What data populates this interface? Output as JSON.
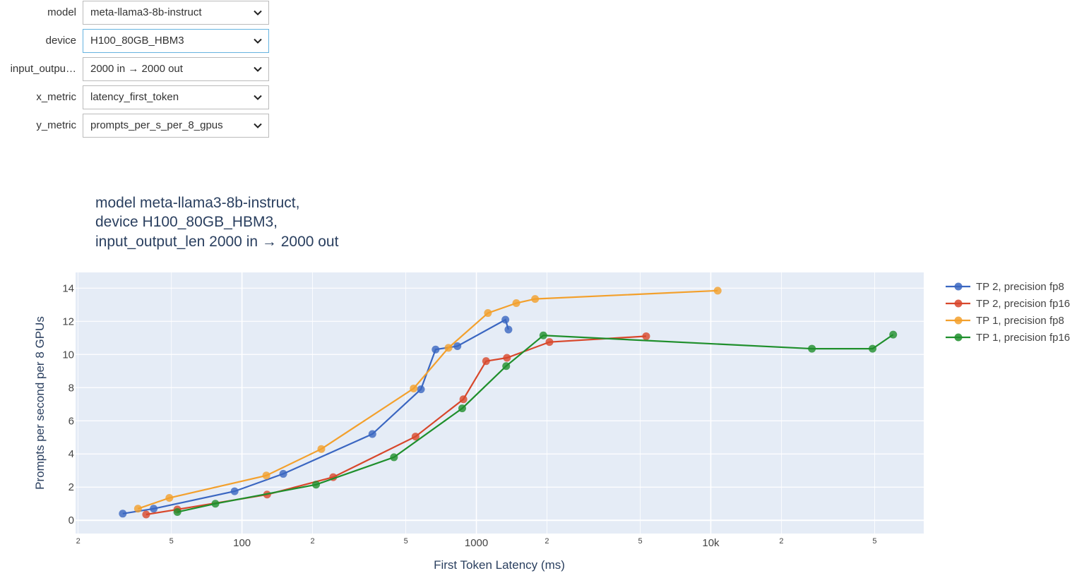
{
  "controls": [
    {
      "label": "model",
      "value": "meta-llama3-8b-instruct"
    },
    {
      "label": "device",
      "value": "H100_80GB_HBM3"
    },
    {
      "label": "input_output_len",
      "label_display": "input_outpu…",
      "value": "2000 in → 2000 out"
    },
    {
      "label": "x_metric",
      "value": "latency_first_token"
    },
    {
      "label": "y_metric",
      "value": "prompts_per_s_per_8_gpus"
    }
  ],
  "chart_data": {
    "type": "line",
    "title": [
      "model meta-llama3-8b-instruct,",
      "device H100_80GB_HBM3,",
      "input_output_len 2000 in → 2000 out"
    ],
    "xlabel": "First Token Latency (ms)",
    "ylabel": "Prompts per second per 8 GPUs",
    "x_scale": "log",
    "xlim": [
      19.5,
      81000
    ],
    "ylim": [
      -0.8,
      14.95
    ],
    "x_ticks": [
      {
        "v": 20,
        "label": "2",
        "minor": true
      },
      {
        "v": 50,
        "label": "5",
        "minor": true
      },
      {
        "v": 100,
        "label": "100",
        "minor": false
      },
      {
        "v": 200,
        "label": "2",
        "minor": true
      },
      {
        "v": 500,
        "label": "5",
        "minor": true
      },
      {
        "v": 1000,
        "label": "1000",
        "minor": false
      },
      {
        "v": 2000,
        "label": "2",
        "minor": true
      },
      {
        "v": 5000,
        "label": "5",
        "minor": true
      },
      {
        "v": 10000,
        "label": "10k",
        "minor": false
      },
      {
        "v": 20000,
        "label": "2",
        "minor": true
      },
      {
        "v": 50000,
        "label": "5",
        "minor": true
      }
    ],
    "y_ticks": [
      0,
      2,
      4,
      6,
      8,
      10,
      12,
      14
    ],
    "grid": true,
    "legend_position": "right",
    "series": [
      {
        "name": "TP 2, precision fp8",
        "color": "#3a66c1",
        "points": [
          [
            31,
            0.4
          ],
          [
            42,
            0.7
          ],
          [
            93,
            1.75
          ],
          [
            150,
            2.8
          ],
          [
            360,
            5.2
          ],
          [
            580,
            7.9
          ],
          [
            670,
            10.3
          ],
          [
            830,
            10.5
          ],
          [
            1330,
            12.1
          ],
          [
            1370,
            11.5
          ]
        ]
      },
      {
        "name": "TP 2, precision fp16",
        "color": "#d8472b",
        "points": [
          [
            39,
            0.35
          ],
          [
            53,
            0.65
          ],
          [
            128,
            1.55
          ],
          [
            245,
            2.6
          ],
          [
            550,
            5.05
          ],
          [
            880,
            7.3
          ],
          [
            1100,
            9.6
          ],
          [
            1350,
            9.8
          ],
          [
            2050,
            10.75
          ],
          [
            5300,
            11.1
          ]
        ]
      },
      {
        "name": "TP 1, precision fp8",
        "color": "#f3a02c",
        "points": [
          [
            36,
            0.7
          ],
          [
            49,
            1.35
          ],
          [
            127,
            2.7
          ],
          [
            218,
            4.3
          ],
          [
            540,
            7.95
          ],
          [
            760,
            10.4
          ],
          [
            1120,
            12.5
          ],
          [
            1480,
            13.1
          ],
          [
            1780,
            13.35
          ],
          [
            10700,
            13.85
          ]
        ]
      },
      {
        "name": "TP 1, precision fp16",
        "color": "#1f8f2c",
        "points": [
          [
            53,
            0.5
          ],
          [
            77,
            1.0
          ],
          [
            207,
            2.15
          ],
          [
            445,
            3.8
          ],
          [
            870,
            6.75
          ],
          [
            1340,
            9.3
          ],
          [
            1930,
            11.15
          ],
          [
            27000,
            10.35
          ],
          [
            49000,
            10.35
          ],
          [
            60000,
            11.2
          ]
        ]
      }
    ]
  }
}
